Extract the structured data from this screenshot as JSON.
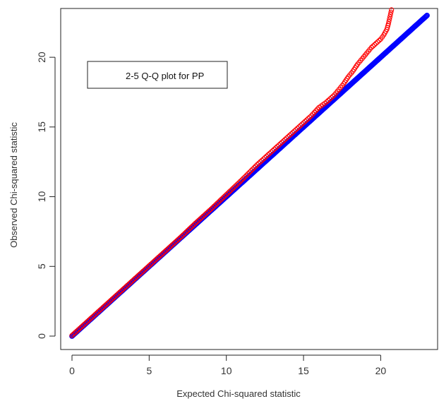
{
  "chart_data": {
    "type": "scatter",
    "title": "",
    "xlabel": "Expected Chi-squared statistic",
    "ylabel": "Observed Chi-squared statistic",
    "x_ticks": [
      "0",
      "5",
      "10",
      "15",
      "20"
    ],
    "y_ticks": [
      "0",
      "5",
      "10",
      "15",
      "20"
    ],
    "xlim": [
      0,
      23
    ],
    "ylim": [
      0,
      23.5
    ],
    "legend_text": "2-5 Q-Q plot for PP",
    "legend_placement": "top-left",
    "grid": false,
    "series": [
      {
        "color": "#0000ff",
        "marker": "open-circle",
        "x": [
          0,
          1,
          2,
          3,
          4,
          5,
          6,
          7,
          8,
          9,
          10,
          11,
          12,
          13,
          14,
          15,
          16,
          17,
          18,
          19,
          20,
          21,
          22,
          23
        ],
        "y": [
          0,
          1,
          2,
          3,
          4,
          5,
          6,
          7,
          8,
          9,
          10,
          11,
          12,
          13,
          14,
          15,
          16,
          17,
          18,
          19,
          20,
          21,
          22,
          23
        ]
      },
      {
        "color": "#ff0000",
        "marker": "open-circle",
        "x": [
          0,
          1,
          2,
          3,
          4,
          5,
          6,
          7,
          8,
          9,
          10,
          11,
          12,
          13,
          14,
          15,
          15.5,
          16,
          16.5,
          17,
          17.3,
          17.6,
          17.9,
          18.2,
          18.5,
          18.8,
          19.1,
          19.4,
          19.7,
          20.0,
          20.2,
          20.4,
          20.5,
          20.6,
          20.7
        ],
        "y": [
          0.05,
          1.05,
          2.05,
          3.05,
          4.05,
          5.05,
          6.05,
          7.05,
          8.1,
          9.1,
          10.15,
          11.2,
          12.3,
          13.3,
          14.3,
          15.3,
          15.8,
          16.4,
          16.8,
          17.3,
          17.7,
          18.1,
          18.6,
          19.0,
          19.5,
          19.9,
          20.3,
          20.7,
          21.0,
          21.3,
          21.6,
          22.0,
          22.4,
          22.9,
          23.4
        ]
      }
    ]
  }
}
